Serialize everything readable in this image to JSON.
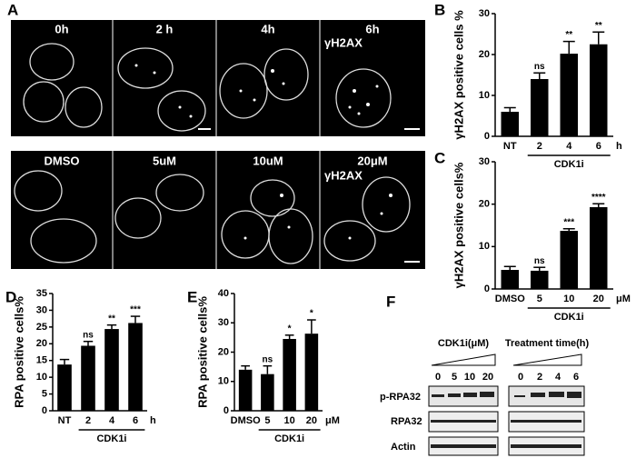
{
  "panel_labels": [
    "A",
    "B",
    "C",
    "D",
    "E",
    "F"
  ],
  "microscopy": {
    "time_labels": [
      "0h",
      "2 h",
      "4h",
      "6h"
    ],
    "dose_labels": [
      "DMSO",
      "5uM",
      "10uM",
      "20μM"
    ],
    "stain": "γH2AX"
  },
  "blot": {
    "dose_title": "CDK1i(μM)",
    "dose_lanes": [
      "0",
      "5",
      "10",
      "20"
    ],
    "time_title": "Treatment time(h)",
    "time_lanes": [
      "0",
      "2",
      "4",
      "6"
    ],
    "rows": [
      "p-RPA32",
      "RPA32",
      "Actin"
    ]
  },
  "chart_data": [
    {
      "type": "bar",
      "y_label": "γH2AX positive cells %",
      "categories": [
        "NT",
        "2",
        "4",
        "6"
      ],
      "values": [
        6,
        14,
        20.2,
        22.5
      ],
      "errors": [
        1,
        1.5,
        3,
        3
      ],
      "annotations": [
        null,
        "ns",
        "**",
        "**"
      ],
      "x_unit": "h",
      "group_label": "CDK1i",
      "color": "#000000",
      "ylim": [
        0,
        30
      ],
      "yticks": [
        0,
        10,
        20,
        30
      ]
    },
    {
      "type": "bar",
      "y_label": "γH2AX positive cells%",
      "categories": [
        "DMSO",
        "5",
        "10",
        "20"
      ],
      "values": [
        4.5,
        4.3,
        13.7,
        19.3
      ],
      "errors": [
        0.8,
        0.8,
        0.5,
        0.8
      ],
      "annotations": [
        null,
        "ns",
        "***",
        "****"
      ],
      "x_unit": "μM",
      "group_label": "CDK1i",
      "color": "#000000",
      "ylim": [
        0,
        30
      ],
      "yticks": [
        0,
        10,
        20,
        30
      ]
    },
    {
      "type": "bar",
      "y_label": "RPA positive cells%",
      "categories": [
        "NT",
        "2",
        "4",
        "6"
      ],
      "values": [
        13.8,
        19.4,
        24.4,
        26.2
      ],
      "errors": [
        1.5,
        1.3,
        1.2,
        2
      ],
      "annotations": [
        null,
        "ns",
        "**",
        "***"
      ],
      "x_unit": "h",
      "group_label": "CDK1i",
      "color": "#000000",
      "ylim": [
        0,
        35
      ],
      "yticks": [
        0,
        5,
        10,
        15,
        20,
        25,
        30,
        35
      ]
    },
    {
      "type": "bar",
      "y_label": "RPA positive cells%",
      "categories": [
        "DMSO",
        "5",
        "10",
        "20"
      ],
      "values": [
        14,
        12.5,
        24.5,
        26.3
      ],
      "errors": [
        1.3,
        2.8,
        1.3,
        4.7
      ],
      "annotations": [
        null,
        "ns",
        "*",
        "*"
      ],
      "x_unit": "μM",
      "group_label": "CDK1i",
      "color": "#000000",
      "ylim": [
        0,
        40
      ],
      "yticks": [
        0,
        10,
        20,
        30,
        40
      ]
    }
  ]
}
